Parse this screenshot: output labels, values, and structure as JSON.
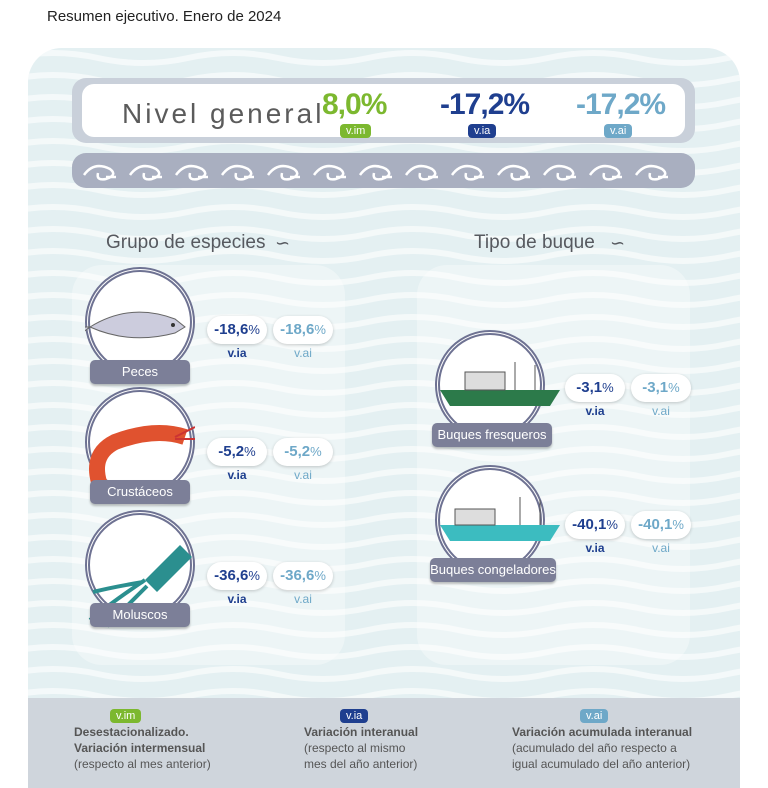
{
  "title": "Resumen ejecutivo. Enero de 2024",
  "header": {
    "label": "Nivel general",
    "vim": "8,0%",
    "via": "-17,2%",
    "vai": "-17,2%"
  },
  "badges": {
    "vim": "v.im",
    "via": "v.ia",
    "vai": "v.ai"
  },
  "colors": {
    "green": "#7cb82f",
    "dark_blue": "#1f3f8f",
    "light_blue": "#6ea8c8",
    "label_bg": "#7c7f98"
  },
  "sections": {
    "species": "Grupo de especies",
    "vessel": "Tipo de buque"
  },
  "species": [
    {
      "name": "Peces",
      "via": "-18,6",
      "vai": "-18,6",
      "icon": "fish-icon"
    },
    {
      "name": "Crustáceos",
      "via": "-5,2",
      "vai": "-5,2",
      "icon": "shrimp-icon"
    },
    {
      "name": "Moluscos",
      "via": "-36,6",
      "vai": "-36,6",
      "icon": "squid-icon"
    }
  ],
  "vessels": [
    {
      "name": "Buques fresqueros",
      "via": "-3,1",
      "vai": "-3,1",
      "icon": "trawler-icon"
    },
    {
      "name": "Buques congeladores",
      "via": "-40,1",
      "vai": "-40,1",
      "icon": "freezer-ship-icon"
    }
  ],
  "pct": "%",
  "legend": [
    {
      "badge": "v.im",
      "l1": "Desestacionalizado.",
      "l2": "Variación intermensual",
      "l3": "(respecto al mes anterior)"
    },
    {
      "badge": "v.ia",
      "l1": "Variación interanual",
      "l2": "(respecto al mismo",
      "l3": "mes del año anterior)"
    },
    {
      "badge": "v.ai",
      "l1": "Variación acumulada interanual",
      "l2": "(acumulado del año respecto a",
      "l3": "igual acumulado del año anterior)"
    }
  ]
}
